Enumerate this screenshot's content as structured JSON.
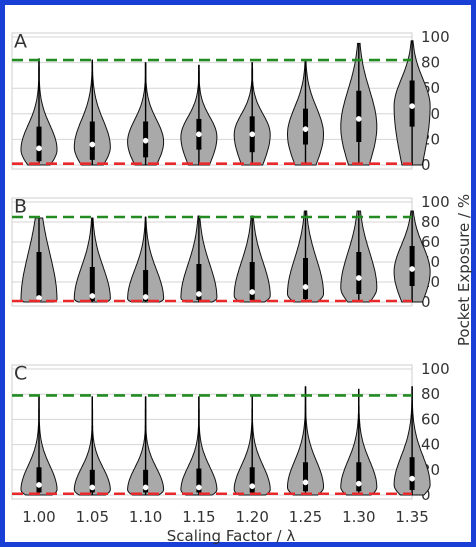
{
  "figure": {
    "xlabel": "Scaling Factor / λ",
    "ylabel": "Pocket Exposure / %",
    "frame_color": "#1a3fd6"
  },
  "chart_data": [
    {
      "type": "violin",
      "panel": "A",
      "categories": [
        "1.00",
        "1.05",
        "1.10",
        "1.15",
        "1.20",
        "1.25",
        "1.30",
        "1.35"
      ],
      "ylim": [
        0,
        100
      ],
      "yticks": [
        0,
        20,
        40,
        60,
        80,
        100
      ],
      "grid": true,
      "reference_lines": [
        {
          "value": 82,
          "color": "#228b22",
          "style": "dashed"
        },
        {
          "value": 1,
          "color": "#e8282a",
          "style": "dashed"
        }
      ],
      "series": [
        {
          "category": "1.00",
          "min": 0,
          "max": 83,
          "q1": 3,
          "median": 13,
          "q3": 30,
          "mode": 12
        },
        {
          "category": "1.05",
          "min": 0,
          "max": 82,
          "q1": 4,
          "median": 16,
          "q3": 34,
          "mode": 14
        },
        {
          "category": "1.10",
          "min": 0,
          "max": 80,
          "q1": 6,
          "median": 19,
          "q3": 34,
          "mode": 18
        },
        {
          "category": "1.15",
          "min": 0,
          "max": 78,
          "q1": 12,
          "median": 24,
          "q3": 36,
          "mode": 22
        },
        {
          "category": "1.20",
          "min": 0,
          "max": 80,
          "q1": 10,
          "median": 24,
          "q3": 38,
          "mode": 24
        },
        {
          "category": "1.25",
          "min": 0,
          "max": 82,
          "q1": 16,
          "median": 28,
          "q3": 44,
          "mode": 24
        },
        {
          "category": "1.30",
          "min": 0,
          "max": 95,
          "q1": 18,
          "median": 36,
          "q3": 58,
          "mode": 30
        },
        {
          "category": "1.35",
          "min": 0,
          "max": 97,
          "q1": 30,
          "median": 46,
          "q3": 66,
          "mode": 46
        }
      ]
    },
    {
      "type": "violin",
      "panel": "B",
      "categories": [
        "1.00",
        "1.05",
        "1.10",
        "1.15",
        "1.20",
        "1.25",
        "1.30",
        "1.35"
      ],
      "ylim": [
        0,
        100
      ],
      "yticks": [
        0,
        20,
        40,
        60,
        80,
        100
      ],
      "grid": true,
      "reference_lines": [
        {
          "value": 85,
          "color": "#228b22",
          "style": "dashed"
        },
        {
          "value": 1,
          "color": "#e8282a",
          "style": "dashed"
        }
      ],
      "series": [
        {
          "category": "1.00",
          "min": 0,
          "max": 84,
          "q1": 1,
          "median": 4,
          "q3": 50,
          "mode": 2
        },
        {
          "category": "1.05",
          "min": 0,
          "max": 84,
          "q1": 1,
          "median": 6,
          "q3": 35,
          "mode": 3
        },
        {
          "category": "1.10",
          "min": 0,
          "max": 85,
          "q1": 1,
          "median": 5,
          "q3": 32,
          "mode": 3
        },
        {
          "category": "1.15",
          "min": 0,
          "max": 86,
          "q1": 2,
          "median": 8,
          "q3": 38,
          "mode": 4
        },
        {
          "category": "1.20",
          "min": 0,
          "max": 86,
          "q1": 2,
          "median": 10,
          "q3": 40,
          "mode": 6
        },
        {
          "category": "1.25",
          "min": 0,
          "max": 91,
          "q1": 3,
          "median": 15,
          "q3": 44,
          "mode": 8
        },
        {
          "category": "1.30",
          "min": 0,
          "max": 91,
          "q1": 8,
          "median": 24,
          "q3": 50,
          "mode": 14
        },
        {
          "category": "1.35",
          "min": 0,
          "max": 91,
          "q1": 16,
          "median": 33,
          "q3": 56,
          "mode": 30
        }
      ]
    },
    {
      "type": "violin",
      "panel": "C",
      "categories": [
        "1.00",
        "1.05",
        "1.10",
        "1.15",
        "1.20",
        "1.25",
        "1.30",
        "1.35"
      ],
      "ylim": [
        0,
        100
      ],
      "yticks": [
        0,
        20,
        40,
        60,
        80,
        100
      ],
      "grid": true,
      "reference_lines": [
        {
          "value": 79,
          "color": "#228b22",
          "style": "dashed"
        },
        {
          "value": 1,
          "color": "#e8282a",
          "style": "dashed"
        }
      ],
      "series": [
        {
          "category": "1.00",
          "min": 0,
          "max": 78,
          "q1": 2,
          "median": 8,
          "q3": 22,
          "mode": 4
        },
        {
          "category": "1.05",
          "min": 0,
          "max": 78,
          "q1": 2,
          "median": 6,
          "q3": 20,
          "mode": 4
        },
        {
          "category": "1.10",
          "min": 0,
          "max": 78,
          "q1": 2,
          "median": 6,
          "q3": 20,
          "mode": 4
        },
        {
          "category": "1.15",
          "min": 0,
          "max": 78,
          "q1": 2,
          "median": 6,
          "q3": 21,
          "mode": 4
        },
        {
          "category": "1.20",
          "min": 0,
          "max": 78,
          "q1": 2,
          "median": 7,
          "q3": 22,
          "mode": 4
        },
        {
          "category": "1.25",
          "min": 0,
          "max": 86,
          "q1": 3,
          "median": 10,
          "q3": 26,
          "mode": 6
        },
        {
          "category": "1.30",
          "min": 0,
          "max": 84,
          "q1": 3,
          "median": 9,
          "q3": 26,
          "mode": 6
        },
        {
          "category": "1.35",
          "min": 0,
          "max": 86,
          "q1": 4,
          "median": 13,
          "q3": 30,
          "mode": 8
        }
      ]
    }
  ]
}
